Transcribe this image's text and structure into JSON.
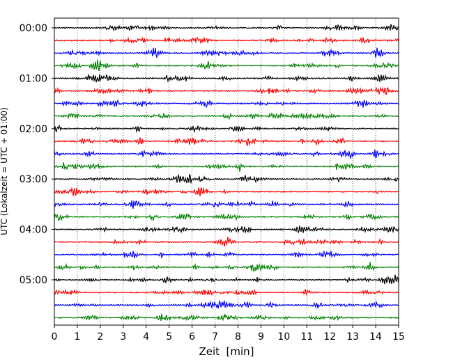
{
  "chart_data": {
    "type": "line",
    "title": "",
    "xlabel": "Zeit  [min]",
    "ylabel": "UTC (Lokalzeit = UTC + 01:00)",
    "xlim": [
      0,
      15
    ],
    "x_ticks": [
      "0",
      "1",
      "2",
      "3",
      "4",
      "5",
      "6",
      "7",
      "8",
      "9",
      "10",
      "11",
      "12",
      "13",
      "14",
      "15"
    ],
    "y_ticks": [
      "00:00",
      "01:00",
      "02:00",
      "03:00",
      "04:00",
      "05:00"
    ],
    "grid": "vertical dotted lines at each minute",
    "trace_interval_minutes": 15,
    "trace_colors": [
      "#000000",
      "#ff0000",
      "#0000ff",
      "#008000"
    ],
    "trace_start_times": [
      "00:00",
      "00:15",
      "00:30",
      "00:45",
      "01:00",
      "01:15",
      "01:30",
      "01:45",
      "02:00",
      "02:15",
      "02:30",
      "02:45",
      "03:00",
      "03:15",
      "03:30",
      "03:45",
      "04:00",
      "04:15",
      "04:30",
      "04:45",
      "05:00",
      "05:15",
      "05:30",
      "05:45"
    ]
  }
}
